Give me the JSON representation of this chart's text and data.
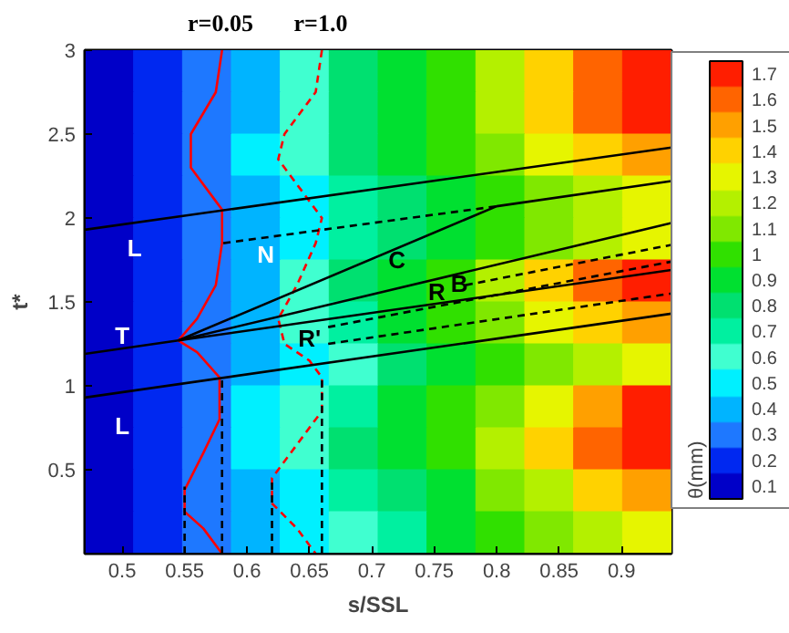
{
  "chart_data": {
    "type": "heatmap",
    "xlabel": "s/SSL",
    "ylabel": "t*",
    "clabel": "θ(mm)",
    "xlim": [
      0.47,
      0.94
    ],
    "ylim": [
      0,
      3
    ],
    "xticks": [
      0.5,
      0.55,
      0.6,
      0.65,
      0.7,
      0.75,
      0.8,
      0.85,
      0.9
    ],
    "yticks": [
      0.5,
      1,
      1.5,
      2,
      2.5,
      3
    ],
    "clim": [
      0.05,
      1.75
    ],
    "cticks": [
      0.1,
      0.2,
      0.3,
      0.4,
      0.5,
      0.6,
      0.7,
      0.8,
      0.9,
      1,
      1.1,
      1.2,
      1.3,
      1.4,
      1.5,
      1.6,
      1.7
    ],
    "cells": [
      [
        0.1,
        0.2,
        0.3,
        0.4,
        0.6,
        0.8,
        0.9,
        1.0,
        1.2,
        1.4,
        1.6,
        1.7
      ],
      [
        0.1,
        0.2,
        0.3,
        0.4,
        0.6,
        0.8,
        0.9,
        1.0,
        1.2,
        1.4,
        1.6,
        1.7
      ],
      [
        0.1,
        0.2,
        0.3,
        0.5,
        0.6,
        0.8,
        0.9,
        1.0,
        1.1,
        1.3,
        1.4,
        1.5
      ],
      [
        0.1,
        0.2,
        0.3,
        0.4,
        0.5,
        0.7,
        0.8,
        0.9,
        1.0,
        1.1,
        1.2,
        1.3
      ],
      [
        0.1,
        0.2,
        0.3,
        0.4,
        0.5,
        0.7,
        0.8,
        0.9,
        1.0,
        1.1,
        1.2,
        1.3
      ],
      [
        0.1,
        0.2,
        0.3,
        0.4,
        0.6,
        0.8,
        0.9,
        1.0,
        1.2,
        1.4,
        1.6,
        1.7
      ],
      [
        0.1,
        0.2,
        0.3,
        0.4,
        0.6,
        0.7,
        0.9,
        1.0,
        1.1,
        1.3,
        1.4,
        1.5
      ],
      [
        0.1,
        0.2,
        0.3,
        0.4,
        0.5,
        0.6,
        0.8,
        0.9,
        1.0,
        1.1,
        1.2,
        1.3
      ],
      [
        0.1,
        0.2,
        0.3,
        0.5,
        0.6,
        0.7,
        0.9,
        1.0,
        1.1,
        1.3,
        1.5,
        1.7
      ],
      [
        0.1,
        0.2,
        0.3,
        0.5,
        0.6,
        0.8,
        0.9,
        1.0,
        1.2,
        1.4,
        1.6,
        1.7
      ],
      [
        0.1,
        0.2,
        0.3,
        0.4,
        0.5,
        0.7,
        0.8,
        0.9,
        1.1,
        1.2,
        1.4,
        1.5
      ],
      [
        0.1,
        0.2,
        0.3,
        0.4,
        0.5,
        0.6,
        0.7,
        0.9,
        1.0,
        1.1,
        1.2,
        1.3
      ]
    ],
    "series": [
      {
        "type": "line",
        "color": "#ff0000",
        "line_style": "solid",
        "x": [
          0.58,
          0.575,
          0.555,
          0.555,
          0.575,
          0.58,
          0.58,
          0.575,
          0.56,
          0.545,
          0.56,
          0.578,
          0.578,
          0.565,
          0.55,
          0.55,
          0.565,
          0.58
        ],
        "values": [
          3,
          2.75,
          2.5,
          2.3,
          2.1,
          2.05,
          1.85,
          1.6,
          1.4,
          1.27,
          1.2,
          1.05,
          0.8,
          0.6,
          0.38,
          0.25,
          0.15,
          0
        ]
      },
      {
        "type": "line",
        "color": "#ff0000",
        "line_style": "dashed",
        "x": [
          0.66,
          0.655,
          0.63,
          0.625,
          0.64,
          0.66,
          0.655,
          0.64,
          0.625,
          0.63,
          0.65,
          0.66,
          0.66,
          0.64,
          0.62,
          0.62,
          0.64,
          0.655
        ],
        "values": [
          3,
          2.75,
          2.5,
          2.35,
          2.2,
          2,
          1.85,
          1.6,
          1.4,
          1.25,
          1.15,
          1.05,
          0.85,
          0.65,
          0.45,
          0.3,
          0.15,
          0
        ]
      },
      {
        "type": "line",
        "color": "#000000",
        "line_style": "solid",
        "x": [
          0.47,
          0.94
        ],
        "values": [
          1.93,
          2.42
        ]
      },
      {
        "type": "line",
        "color": "#000000",
        "line_style": "solid",
        "x": [
          0.47,
          0.545,
          0.94
        ],
        "values": [
          1.19,
          1.27,
          1.69
        ]
      },
      {
        "type": "line",
        "color": "#000000",
        "line_style": "solid",
        "x": [
          0.47,
          0.94
        ],
        "values": [
          0.93,
          1.43
        ]
      },
      {
        "type": "line",
        "color": "#000000",
        "line_style": "solid",
        "x": [
          0.545,
          0.8,
          0.94
        ],
        "values": [
          1.27,
          2.07,
          2.22
        ]
      },
      {
        "type": "line",
        "color": "#000000",
        "line_style": "solid",
        "x": [
          0.545,
          0.94
        ],
        "values": [
          1.27,
          1.97
        ]
      },
      {
        "type": "line",
        "color": "#000000",
        "line_style": "dashed",
        "x": [
          0.581,
          0.8
        ],
        "values": [
          1.85,
          2.07
        ]
      },
      {
        "type": "line",
        "color": "#000000",
        "line_style": "dashed",
        "x": [
          0.775,
          0.94
        ],
        "values": [
          1.6,
          1.84
        ]
      },
      {
        "type": "line",
        "color": "#000000",
        "line_style": "dashed",
        "x": [
          0.665,
          0.94
        ],
        "values": [
          1.35,
          1.74
        ]
      },
      {
        "type": "line",
        "color": "#000000",
        "line_style": "dashed",
        "x": [
          0.665,
          0.94
        ],
        "values": [
          1.25,
          1.55
        ]
      },
      {
        "type": "line",
        "color": "#000000",
        "line_style": "dashed",
        "x": [
          0.55,
          0.55
        ],
        "values": [
          0,
          0.4
        ]
      },
      {
        "type": "line",
        "color": "#000000",
        "line_style": "dashed",
        "x": [
          0.58,
          0.58
        ],
        "values": [
          0,
          1.05
        ]
      },
      {
        "type": "line",
        "color": "#000000",
        "line_style": "dashed",
        "x": [
          0.62,
          0.62
        ],
        "values": [
          0,
          0.45
        ]
      },
      {
        "type": "line",
        "color": "#000000",
        "line_style": "dashed",
        "x": [
          0.66,
          0.66
        ],
        "values": [
          0,
          1.05
        ]
      }
    ],
    "annotations": [
      "r=0.05",
      "r=1.0",
      "L",
      "N",
      "C",
      "B",
      "R",
      "R'",
      "T",
      "L"
    ]
  }
}
